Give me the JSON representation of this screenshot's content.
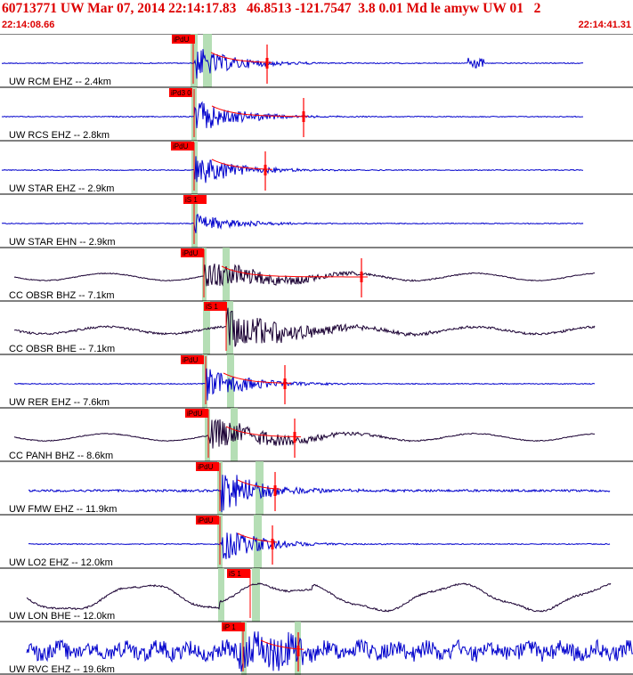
{
  "header": {
    "title": "60713771 UW Mar 07, 2014 22:14:17.83   46.8513 -121.7547  3.8 0.01 Md le amyw UW 01   2",
    "time_start": "22:14:08.66",
    "time_end": "22:14:41.31"
  },
  "colors": {
    "accent": "#dd0000",
    "trace_blue": "#0000cc",
    "trace_dark": "#1a0033",
    "green_window": "#a8d8a8",
    "pick_red": "#ff0000",
    "divider": "#000000"
  },
  "traces": [
    {
      "label": "UW RCM EHZ -- 2.4km",
      "tag": "iPdU",
      "color": "blue",
      "amp": "med"
    },
    {
      "label": "UW RCS EHZ -- 2.8km",
      "tag": "iPd3 0",
      "color": "blue",
      "amp": "med"
    },
    {
      "label": "UW STAR EHZ -- 2.9km",
      "tag": "iPdU",
      "color": "blue",
      "amp": "med"
    },
    {
      "label": "UW STAR EHN -- 2.9km",
      "tag": "iS 1",
      "color": "blue",
      "amp": "low"
    },
    {
      "label": "CC OBSR BHZ -- 7.1km",
      "tag": "iPdU",
      "color": "dark",
      "amp": "med"
    },
    {
      "label": "CC OBSR BHE -- 7.1km",
      "tag": "iS 1",
      "color": "dark",
      "amp": "high"
    },
    {
      "label": "UW RER EHZ -- 7.6km",
      "tag": "iPdU",
      "color": "blue",
      "amp": "med"
    },
    {
      "label": "CC PANH BHZ -- 8.6km",
      "tag": "iPdU",
      "color": "dark",
      "amp": "med"
    },
    {
      "label": "UW FMW EHZ -- 11.9km",
      "tag": "iPdU",
      "color": "blue",
      "amp": "high"
    },
    {
      "label": "UW LO2 EHZ -- 12.0km",
      "tag": "iPdU",
      "color": "blue",
      "amp": "med"
    },
    {
      "label": "UW LON BHE -- 12.0km",
      "tag": "iS 1",
      "color": "dark",
      "amp": "wave"
    },
    {
      "label": "UW RVC EHZ -- 19.6km",
      "tag": "iP 1",
      "color": "blue",
      "amp": "noisy"
    }
  ]
}
